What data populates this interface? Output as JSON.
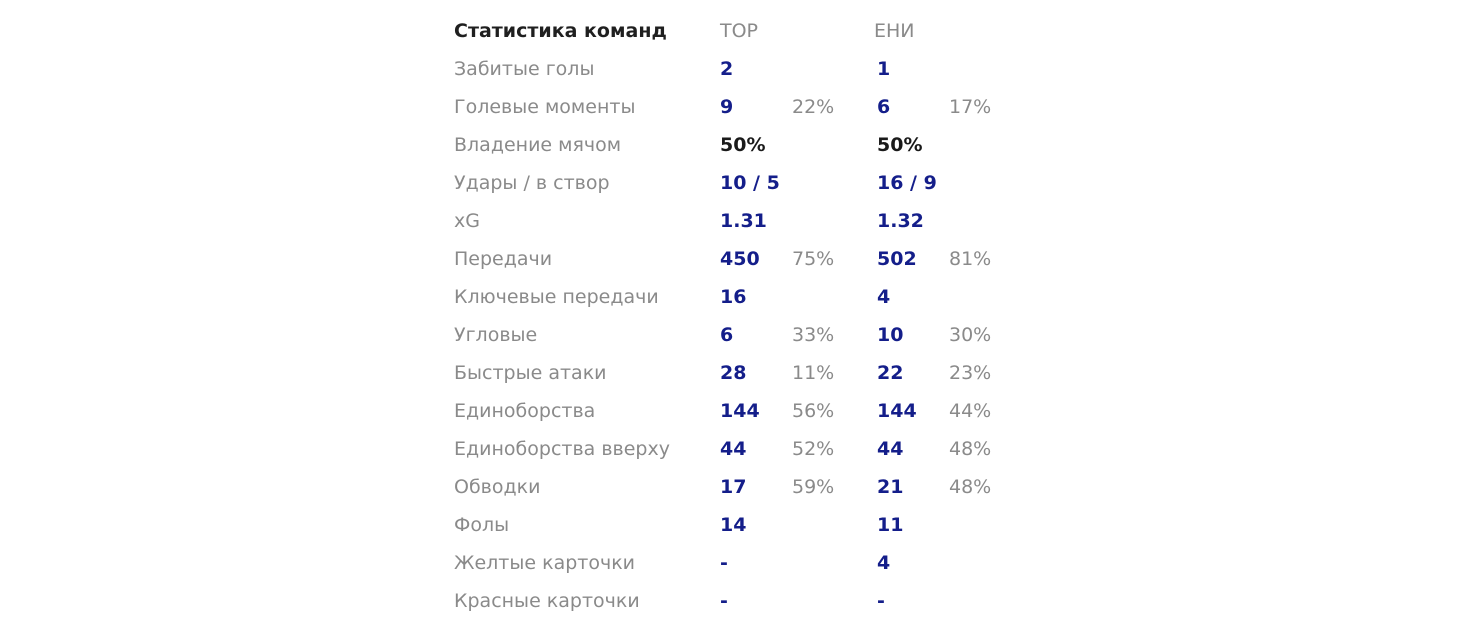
{
  "header": {
    "title": "Статистика команд",
    "team1": "ТОР",
    "team2": "ЕНИ"
  },
  "colors": {
    "label": "#8a8a8a",
    "value": "#141e8a",
    "heading": "#1f1f1f"
  },
  "rows": [
    {
      "label": "Забитые голы",
      "t1": "2",
      "t1_pct": "",
      "t2": "1",
      "t2_pct": ""
    },
    {
      "label": "Голевые моменты",
      "t1": "9",
      "t1_pct": "22%",
      "t2": "6",
      "t2_pct": "17%"
    },
    {
      "label": "Владение мячом",
      "t1": "50%",
      "t1_pct": "",
      "t2": "50%",
      "t2_pct": ""
    },
    {
      "label": "Удары / в створ",
      "t1": "10 / 5",
      "t1_pct": "",
      "t2": "16 / 9",
      "t2_pct": ""
    },
    {
      "label": "xG",
      "t1": "1.31",
      "t1_pct": "",
      "t2": "1.32",
      "t2_pct": ""
    },
    {
      "label": "Передачи",
      "t1": "450",
      "t1_pct": "75%",
      "t2": "502",
      "t2_pct": "81%"
    },
    {
      "label": "Ключевые передачи",
      "t1": "16",
      "t1_pct": "",
      "t2": "4",
      "t2_pct": ""
    },
    {
      "label": "Угловые",
      "t1": "6",
      "t1_pct": "33%",
      "t2": "10",
      "t2_pct": "30%"
    },
    {
      "label": "Быстрые атаки",
      "t1": "28",
      "t1_pct": "11%",
      "t2": "22",
      "t2_pct": "23%"
    },
    {
      "label": "Единоборства",
      "t1": "144",
      "t1_pct": "56%",
      "t2": "144",
      "t2_pct": "44%"
    },
    {
      "label": "Единоборства вверху",
      "t1": "44",
      "t1_pct": "52%",
      "t2": "44",
      "t2_pct": "48%"
    },
    {
      "label": "Обводки",
      "t1": "17",
      "t1_pct": "59%",
      "t2": "21",
      "t2_pct": "48%"
    },
    {
      "label": "Фолы",
      "t1": "14",
      "t1_pct": "",
      "t2": "11",
      "t2_pct": ""
    },
    {
      "label": "Желтые карточки",
      "t1": "-",
      "t1_pct": "",
      "t2": "4",
      "t2_pct": ""
    },
    {
      "label": "Красные карточки",
      "t1": "-",
      "t1_pct": "",
      "t2": "-",
      "t2_pct": ""
    }
  ]
}
